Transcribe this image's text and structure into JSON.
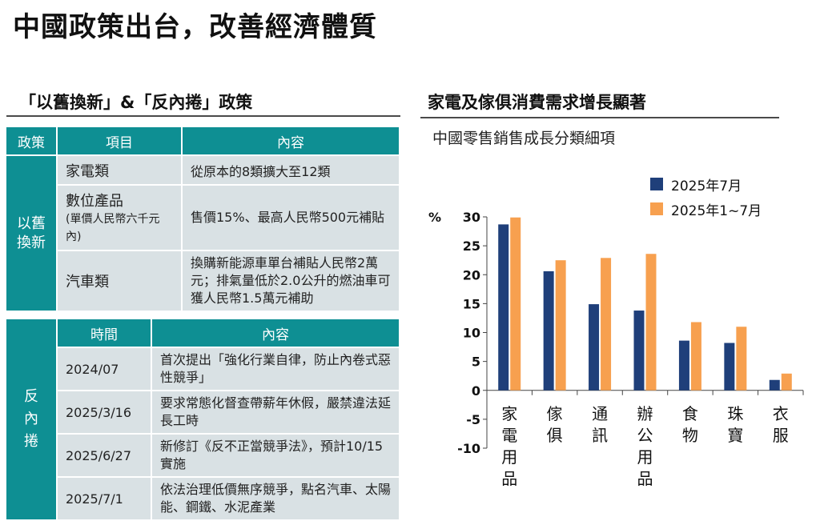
{
  "page": {
    "title": "中國政策出台，改善經濟體質",
    "left_section_title": "「以舊換新」&「反內捲」政策",
    "right_section_title": "家電及傢俱消費需求增長顯著"
  },
  "trade_in_table": {
    "headers": [
      "政策",
      "項目",
      "內容"
    ],
    "group_label": "以舊換新",
    "rows": [
      {
        "item": "家電類",
        "item_note": "",
        "content": "從原本的8類擴大至12類"
      },
      {
        "item": "數位產品",
        "item_note": "(單價人民幣六千元內)",
        "content": "售價15%、最高人民幣500元補貼"
      },
      {
        "item": "汽車類",
        "item_note": "",
        "content": "換購新能源車單台補貼人民幣2萬元；排氣量低於2.0公升的燃油車可獲人民幣1.5萬元補助"
      }
    ]
  },
  "anti_involution_table": {
    "headers": [
      "時間",
      "內容"
    ],
    "group_label": "反內捲",
    "rows": [
      {
        "date": "2024/07",
        "content": "首次提出「強化行業自律，防止內卷式惡性競爭」"
      },
      {
        "date": "2025/3/16",
        "content": "要求常態化督查帶薪年休假，嚴禁違法延長工時"
      },
      {
        "date": "2025/6/27",
        "content": "新修訂《反不正當競爭法》，預計10/15實施"
      },
      {
        "date": "2025/7/1",
        "content": "依法治理低價無序競爭，點名汽車、太陽能、鋼鐵、水泥產業"
      }
    ]
  },
  "chart_data": {
    "type": "bar",
    "title": "中國零售銷售成長分類細項",
    "ylabel": "%",
    "xlabel": "",
    "ylim": [
      -10,
      30
    ],
    "yticks": [
      30,
      25,
      20,
      15,
      10,
      5,
      0,
      -5,
      -10
    ],
    "legend_position": "top-right",
    "categories": [
      "家電用品",
      "傢俱",
      "通訊",
      "辦公用品",
      "食物",
      "珠寶",
      "衣服"
    ],
    "series": [
      {
        "name": "2025年7月",
        "color": "#1f3f7a",
        "values": [
          28.7,
          20.6,
          14.9,
          13.8,
          8.6,
          8.2,
          1.8
        ]
      },
      {
        "name": "2025年1~7月",
        "color": "#f7a04f",
        "values": [
          29.9,
          22.5,
          22.9,
          23.6,
          11.8,
          11.0,
          2.9
        ]
      }
    ]
  }
}
